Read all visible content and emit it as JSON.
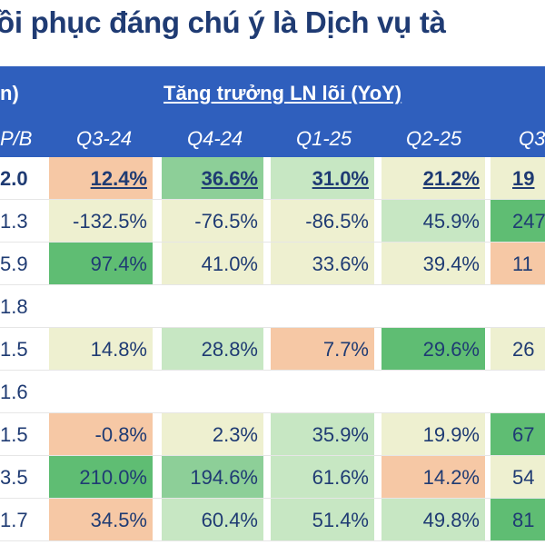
{
  "title": "ồi phục đáng chú ý là Dịch vụ tà",
  "header": {
    "unit_label": "n)",
    "growth_title": "Tăng trưởng LN lõi (YoY)",
    "pb_label": "P/B",
    "quarters": [
      "Q3-24",
      "Q4-24",
      "Q1-25",
      "Q2-25",
      "Q3"
    ]
  },
  "colors": {
    "header_bg": "#2f5fbd",
    "green_dark": "#5fbd73",
    "green_mid": "#8dcf98",
    "green_light": "#c7e7c3",
    "pale_yellow": "#eef0d0",
    "peach": "#f6c8a5",
    "text": "#1f3b73"
  },
  "rows": [
    {
      "pb": "2.0",
      "bold": true,
      "cells": [
        "12.4%",
        "36.6%",
        "31.0%",
        "21.2%",
        "19"
      ],
      "fills": [
        "peach",
        "green_mid",
        "green_light",
        "pale_yellow",
        "pale_yellow"
      ]
    },
    {
      "pb": "1.3",
      "bold": false,
      "cells": [
        "-132.5%",
        "-76.5%",
        "-86.5%",
        "45.9%",
        "247"
      ],
      "fills": [
        "pale_yellow",
        "pale_yellow",
        "pale_yellow",
        "green_light",
        "green_dark"
      ]
    },
    {
      "pb": "5.9",
      "bold": false,
      "cells": [
        "97.4%",
        "41.0%",
        "33.6%",
        "39.4%",
        "11"
      ],
      "fills": [
        "green_dark",
        "pale_yellow",
        "pale_yellow",
        "pale_yellow",
        "peach"
      ]
    },
    {
      "pb": "1.8",
      "bold": false,
      "cells": [
        "",
        "",
        "",
        "",
        ""
      ],
      "fills": [
        "",
        "",
        "",
        "",
        ""
      ]
    },
    {
      "pb": "1.5",
      "bold": false,
      "cells": [
        "14.8%",
        "28.8%",
        "7.7%",
        "29.6%",
        "26"
      ],
      "fills": [
        "pale_yellow",
        "green_light",
        "peach",
        "green_dark",
        "pale_yellow"
      ]
    },
    {
      "pb": "1.6",
      "bold": false,
      "cells": [
        "",
        "",
        "",
        "",
        ""
      ],
      "fills": [
        "",
        "",
        "",
        "",
        ""
      ]
    },
    {
      "pb": "1.5",
      "bold": false,
      "cells": [
        "-0.8%",
        "2.3%",
        "35.9%",
        "19.9%",
        "67"
      ],
      "fills": [
        "peach",
        "pale_yellow",
        "green_light",
        "pale_yellow",
        "green_dark"
      ]
    },
    {
      "pb": "3.5",
      "bold": false,
      "cells": [
        "210.0%",
        "194.6%",
        "61.6%",
        "14.2%",
        "54"
      ],
      "fills": [
        "green_dark",
        "green_mid",
        "green_light",
        "peach",
        "pale_yellow"
      ]
    },
    {
      "pb": "1.7",
      "bold": false,
      "cells": [
        "34.5%",
        "60.4%",
        "51.4%",
        "49.8%",
        "81"
      ],
      "fills": [
        "peach",
        "green_light",
        "green_light",
        "green_light",
        "green_dark"
      ]
    }
  ]
}
